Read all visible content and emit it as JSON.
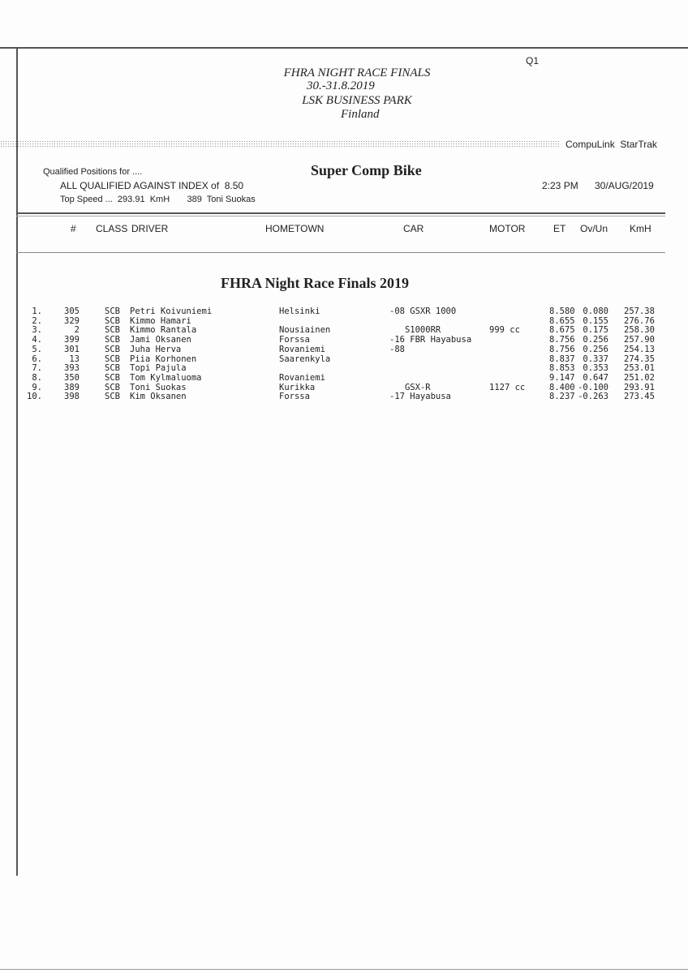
{
  "header": {
    "report_code": "Q1",
    "event_title": "FHRA NIGHT RACE FINALS",
    "event_dates": "30.-31.8.2019",
    "venue": "LSK BUSINESS PARK",
    "country": "Finland",
    "system": "CompuLink  StarTrak"
  },
  "info": {
    "qualified_for": "Qualified Positions for ....",
    "class_title": "Super Comp Bike",
    "index_line": "ALL QUALIFIED AGAINST INDEX of  8.50",
    "top_speed": "Top Speed ...  293.91  KmH       389  Toni Suokas",
    "time": "2:23 PM",
    "date": "30/AUG/2019"
  },
  "columns": [
    "#",
    "CLASS",
    "DRIVER",
    "HOMETOWN",
    "CAR",
    "MOTOR",
    "ET",
    "Ov/Un",
    "KmH"
  ],
  "section_title": "FHRA Night Race Finals 2019",
  "rows": [
    {
      "pos": "1.",
      "num": "305",
      "cls": "SCB",
      "driver": "Petri Koivuniemi",
      "hometown": "Helsinki",
      "car": "-08 GSXR 1000",
      "motor": "",
      "et": "8.580",
      "ovun": "0.080",
      "kmh": "257.38"
    },
    {
      "pos": "2.",
      "num": "329",
      "cls": "SCB",
      "driver": "Kimmo Hamari",
      "hometown": "",
      "car": "",
      "motor": "",
      "et": "8.655",
      "ovun": "0.155",
      "kmh": "276.76"
    },
    {
      "pos": "3.",
      "num": "2",
      "cls": "SCB",
      "driver": "Kimmo Rantala",
      "hometown": "Nousiainen",
      "car": "   S1000RR",
      "motor": "999 cc",
      "et": "8.675",
      "ovun": "0.175",
      "kmh": "258.30"
    },
    {
      "pos": "4.",
      "num": "399",
      "cls": "SCB",
      "driver": "Jami Oksanen",
      "hometown": "Forssa",
      "car": "-16 FBR Hayabusa",
      "motor": "",
      "et": "8.756",
      "ovun": "0.256",
      "kmh": "257.90"
    },
    {
      "pos": "5.",
      "num": "301",
      "cls": "SCB",
      "driver": "Juha Herva",
      "hometown": "Rovaniemi",
      "car": "-88",
      "motor": "",
      "et": "8.756",
      "ovun": "0.256",
      "kmh": "254.13"
    },
    {
      "pos": "6.",
      "num": "13",
      "cls": "SCB",
      "driver": "Piia Korhonen",
      "hometown": "Saarenkyla",
      "car": "",
      "motor": "",
      "et": "8.837",
      "ovun": "0.337",
      "kmh": "274.35"
    },
    {
      "pos": "7.",
      "num": "393",
      "cls": "SCB",
      "driver": "Topi Pajula",
      "hometown": "",
      "car": "",
      "motor": "",
      "et": "8.853",
      "ovun": "0.353",
      "kmh": "253.01"
    },
    {
      "pos": "8.",
      "num": "350",
      "cls": "SCB",
      "driver": "Tom Kylmaluoma",
      "hometown": "Rovaniemi",
      "car": "",
      "motor": "",
      "et": "9.147",
      "ovun": "0.647",
      "kmh": "251.02"
    },
    {
      "pos": "9.",
      "num": "389",
      "cls": "SCB",
      "driver": "Toni Suokas",
      "hometown": "Kurikka",
      "car": "   GSX-R",
      "motor": "1127 cc",
      "et": "8.400",
      "ovun": "-0.100",
      "kmh": "293.91"
    },
    {
      "pos": "10.",
      "num": "398",
      "cls": "SCB",
      "driver": "Kim Oksanen",
      "hometown": "Forssa",
      "car": "-17 Hayabusa",
      "motor": "",
      "et": "8.237",
      "ovun": "-0.263",
      "kmh": "273.45"
    }
  ]
}
